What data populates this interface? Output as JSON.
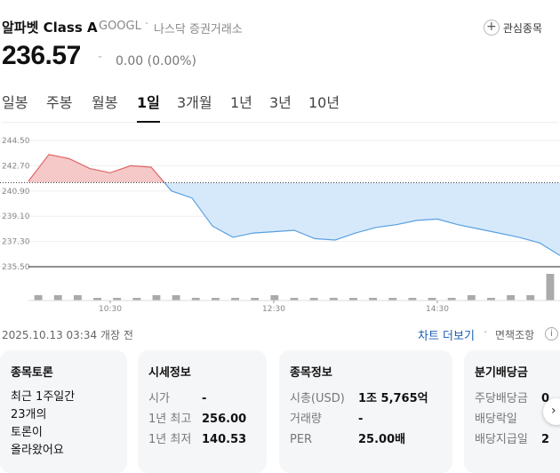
{
  "header": {
    "stock_name": "알파벳 Class A",
    "ticker": "GOOGL",
    "dot": "·",
    "exchange": "나스닥 증권거래소",
    "watch_plus": "+",
    "watch_label": "관심종목"
  },
  "price": {
    "value": "236.57",
    "dash": "-",
    "change": "0.00 (0.00%)"
  },
  "tabs": [
    "일봉",
    "주봉",
    "월봉",
    "1일",
    "3개월",
    "1년",
    "3년",
    "10년"
  ],
  "active_tab": "1일",
  "chart_data": {
    "type": "area",
    "title": "",
    "xlabel": "",
    "ylabel": "",
    "reference_line": 241.5,
    "y_ticks": [
      "244.50",
      "242.70",
      "240.90",
      "239.10",
      "237.30",
      "235.50"
    ],
    "ylim": [
      235.5,
      244.5
    ],
    "x_ticks": [
      "10:30",
      "12:30",
      "14:30"
    ],
    "x": [
      "09:30",
      "09:45",
      "10:00",
      "10:15",
      "10:30",
      "10:45",
      "11:00",
      "11:15",
      "11:30",
      "11:45",
      "12:00",
      "12:15",
      "12:30",
      "12:45",
      "13:00",
      "13:15",
      "13:30",
      "13:45",
      "14:00",
      "14:15",
      "14:30",
      "14:45",
      "15:00",
      "15:15",
      "15:30",
      "15:45",
      "16:00"
    ],
    "values": [
      241.6,
      243.5,
      243.2,
      242.5,
      242.2,
      242.7,
      242.6,
      240.9,
      240.4,
      238.4,
      237.6,
      237.9,
      238.0,
      238.1,
      237.5,
      237.4,
      237.9,
      238.3,
      238.5,
      238.8,
      238.9,
      238.5,
      238.2,
      237.9,
      237.6,
      237.2,
      236.3
    ],
    "above_color": "#f6c9c9",
    "below_color": "#d6e9fb",
    "line_above_color": "#e06666",
    "line_below_color": "#5aa0e0",
    "volume": [
      2,
      2,
      2,
      1,
      1,
      1,
      2,
      2,
      1,
      1,
      1,
      1,
      2,
      1,
      1,
      1,
      1,
      1,
      1,
      1,
      1,
      1,
      2,
      1,
      2,
      2,
      10
    ]
  },
  "chart_footer": {
    "date": "2025.10.13 03:34 개장 전",
    "more_link": "차트 더보기",
    "sep": "·",
    "disclaimer": "면책조항",
    "info_icon": "i"
  },
  "cards": {
    "discussion": {
      "title": "종목토론",
      "lines": [
        "최근 1주일간",
        "23개의",
        "토론이",
        "올라왔어요"
      ]
    },
    "market": {
      "title": "시세정보",
      "rows": [
        {
          "k": "시가",
          "v": "-"
        },
        {
          "k": "1년 최고",
          "v": "256.00"
        },
        {
          "k": "1년 최저",
          "v": "140.53"
        }
      ]
    },
    "info": {
      "title": "종목정보",
      "rows": [
        {
          "k": "시총(USD)",
          "v": "1조 5,765억"
        },
        {
          "k": "거래량",
          "v": "-"
        },
        {
          "k": "PER",
          "v": "25.00배"
        }
      ]
    },
    "dividend": {
      "title": "분기배당금",
      "rows": [
        {
          "k": "주당배당금",
          "v": "0"
        },
        {
          "k": "배당락일",
          "v": ""
        },
        {
          "k": "배당지급일",
          "v": "2"
        }
      ]
    },
    "next_arrow": "›"
  }
}
